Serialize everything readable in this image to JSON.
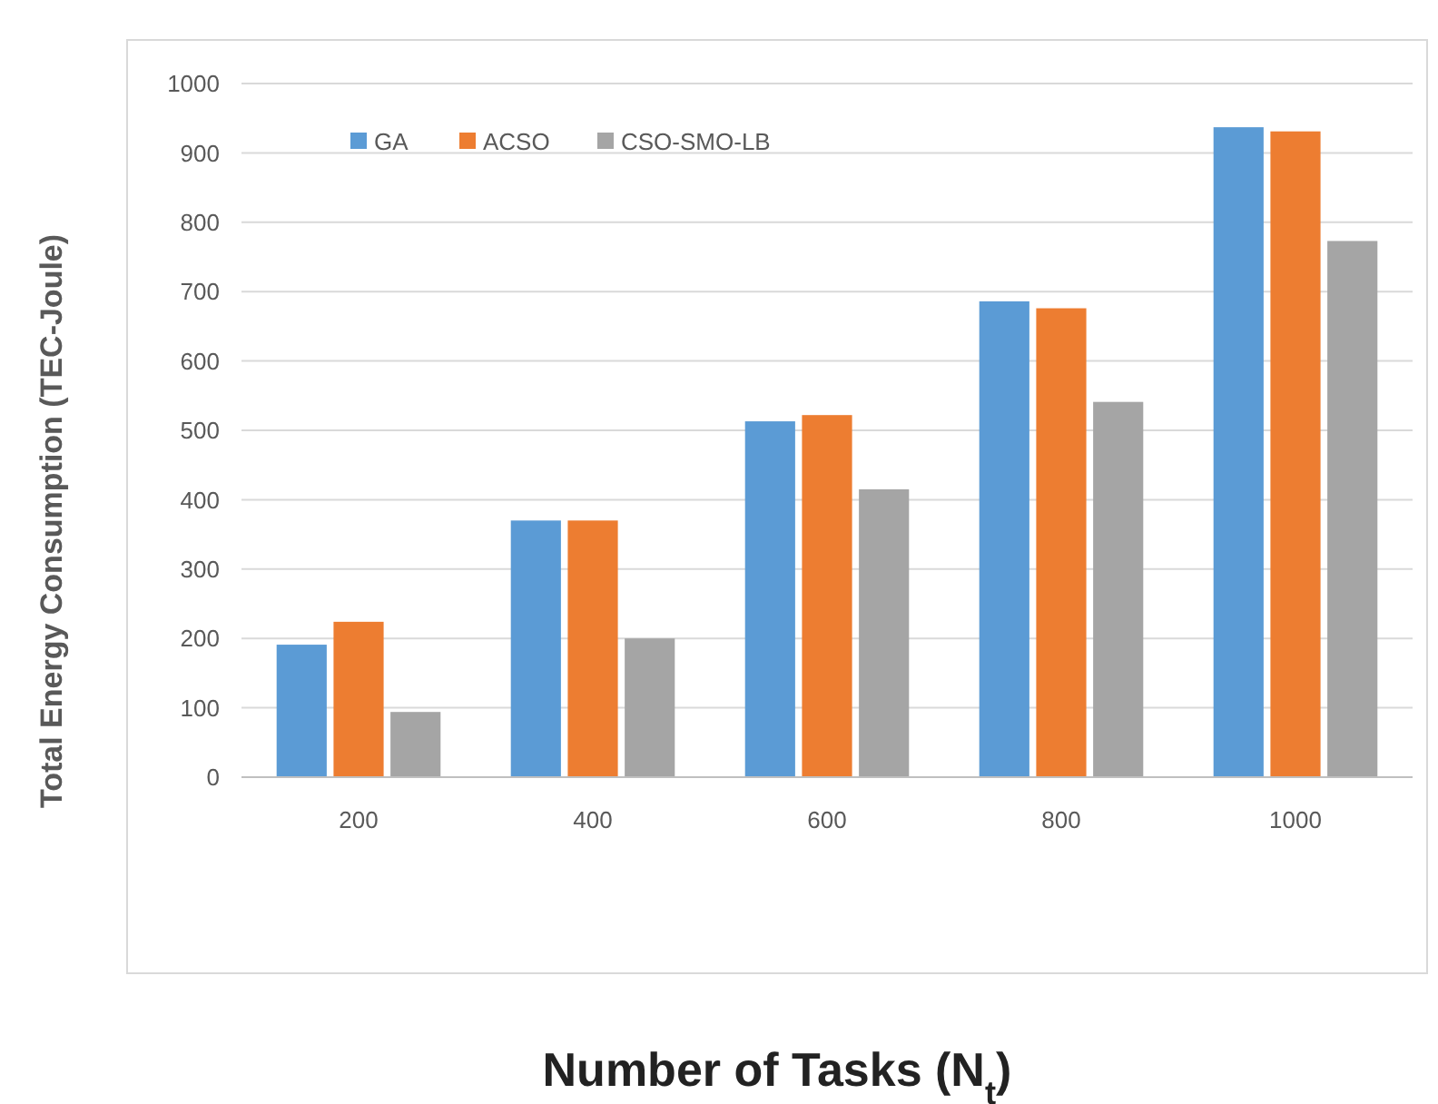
{
  "chart_data": {
    "type": "bar",
    "xlabel": "Number of Tasks (N$_{t}$)",
    "ylabel": "Total Energy Consumption (TEC-Joule)",
    "categories": [
      "200",
      "400",
      "600",
      "800",
      "1000"
    ],
    "series": [
      {
        "name": "GA",
        "color": "#5b9bd5",
        "values": [
          191,
          370,
          513,
          686,
          937
        ]
      },
      {
        "name": "ACSO",
        "color": "#ed7d31",
        "values": [
          224,
          370,
          522,
          676,
          931
        ]
      },
      {
        "name": "CSO-SMO-LB",
        "color": "#a5a5a5",
        "values": [
          94,
          200,
          415,
          541,
          773
        ]
      }
    ],
    "ylim": [
      0,
      1000
    ],
    "yticks": [
      0,
      100,
      200,
      300,
      400,
      500,
      600,
      700,
      800,
      900,
      1000
    ],
    "grid": "y",
    "legend": "top left"
  }
}
